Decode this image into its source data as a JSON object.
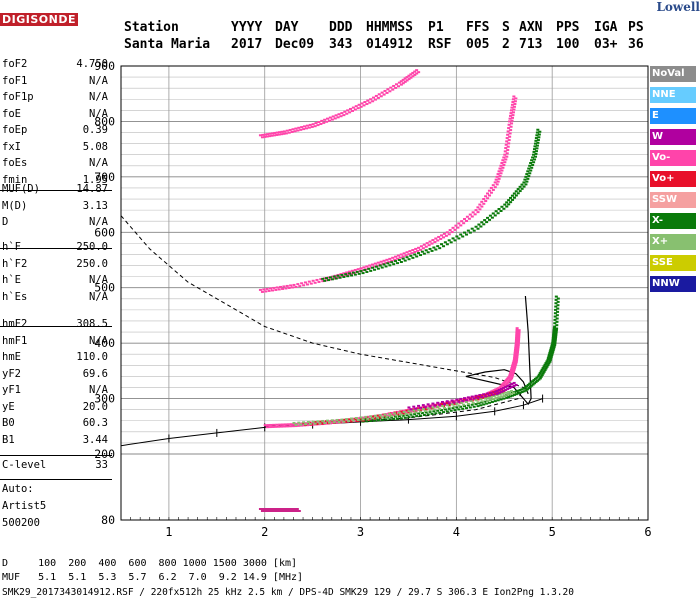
{
  "logo": {
    "line1": "Lowell",
    "line2": "DIGISONDE"
  },
  "header": {
    "labels": [
      "Station",
      "YYYY",
      "DAY",
      "DDD",
      "HHMMSS",
      "P1",
      "FFS",
      "S",
      "AXN",
      "PPS",
      "IGA",
      "PS"
    ],
    "values": [
      "Santa Maria",
      "2017",
      "Dec09",
      "343",
      "014912",
      "RSF",
      "005",
      "2",
      "713",
      "100",
      "03+",
      "36"
    ]
  },
  "params_group1": [
    {
      "k": "foF2",
      "v": "4.750"
    },
    {
      "k": "foF1",
      "v": "N/A"
    },
    {
      "k": "foF1p",
      "v": "N/A"
    },
    {
      "k": "foE",
      "v": "N/A"
    },
    {
      "k": "foEp",
      "v": "0.39"
    },
    {
      "k": "fxI",
      "v": "5.08"
    },
    {
      "k": "foEs",
      "v": "N/A"
    },
    {
      "k": "fmin",
      "v": "1.95"
    }
  ],
  "params_group2": [
    {
      "k": "MUF(D)",
      "v": "14.87"
    },
    {
      "k": "M(D)",
      "v": "3.13"
    },
    {
      "k": "D",
      "v": "N/A"
    }
  ],
  "params_group3": [
    {
      "k": "h`F",
      "v": "250.0"
    },
    {
      "k": "h`F2",
      "v": "250.0"
    },
    {
      "k": "h`E",
      "v": "N/A"
    },
    {
      "k": "h`Es",
      "v": "N/A"
    }
  ],
  "params_group4": [
    {
      "k": "hmF2",
      "v": "308.5"
    },
    {
      "k": "hmF1",
      "v": "N/A"
    },
    {
      "k": "hmE",
      "v": "110.0"
    },
    {
      "k": "yF2",
      "v": "69.6"
    },
    {
      "k": "yF1",
      "v": "N/A"
    },
    {
      "k": "yE",
      "v": "20.0"
    },
    {
      "k": "B0",
      "v": "60.3"
    },
    {
      "k": "B1",
      "v": "3.44"
    }
  ],
  "clevel": {
    "k": "C-level",
    "v": "33"
  },
  "auto": {
    "line1": "Auto:",
    "line2": "Artist5",
    "line3": "500200"
  },
  "legend": [
    {
      "label": "NoVal",
      "color": "#8c8c8c"
    },
    {
      "label": "NNE",
      "color": "#66ccff"
    },
    {
      "label": "E",
      "color": "#1e90ff"
    },
    {
      "label": "W",
      "color": "#b0009f"
    },
    {
      "label": "Vo-",
      "color": "#ff44aa"
    },
    {
      "label": "Vo+",
      "color": "#e8102a"
    },
    {
      "label": "SSW",
      "color": "#f5a0a0"
    },
    {
      "label": "X-",
      "color": "#0a7a0a"
    },
    {
      "label": "X+",
      "color": "#88c070"
    },
    {
      "label": "SSE",
      "color": "#cccc00"
    },
    {
      "label": "NNW",
      "color": "#1a1aa0"
    }
  ],
  "footer": {
    "d_row": "D     100  200  400  600  800 1000 1500 3000 [km]",
    "muf_row": "MUF   5.1  5.1  5.3  5.7  6.2  7.0  9.2 14.9 [MHz]",
    "info_row": "SMK29_2017343014912.RSF / 220fx512h 25 kHz 2.5 km / DPS-4D SMK29 129 / 29.7 S 306.3 E Ion2Png 1.3.20"
  },
  "chart_data": {
    "type": "scatter",
    "x_ticks": [
      "1",
      "2",
      "3",
      "4",
      "5",
      "6"
    ],
    "y_ticks": [
      "80",
      "200",
      "300",
      "400",
      "500",
      "600",
      "700",
      "800",
      "900"
    ],
    "xlim": [
      0.5,
      6
    ],
    "y_axis_note": "virtual height scale: 80 then 200..900 every 100 (km)",
    "grid": true,
    "series": [
      {
        "name": "Vo-",
        "color": "#ff44aa",
        "points": [
          [
            2.0,
            252
          ],
          [
            2.3,
            254
          ],
          [
            2.6,
            258
          ],
          [
            2.9,
            263
          ],
          [
            3.2,
            270
          ],
          [
            3.5,
            280
          ],
          [
            3.8,
            290
          ],
          [
            4.1,
            300
          ],
          [
            4.3,
            308
          ],
          [
            4.45,
            320
          ],
          [
            4.55,
            340
          ],
          [
            4.6,
            370
          ],
          [
            4.62,
            400
          ],
          [
            4.63,
            430
          ]
        ]
      },
      {
        "name": "X-",
        "color": "#0a7a0a",
        "points": [
          [
            3.0,
            262
          ],
          [
            3.4,
            268
          ],
          [
            3.8,
            278
          ],
          [
            4.2,
            290
          ],
          [
            4.5,
            305
          ],
          [
            4.7,
            318
          ],
          [
            4.85,
            340
          ],
          [
            4.95,
            370
          ],
          [
            5.0,
            400
          ],
          [
            5.02,
            430
          ],
          [
            5.04,
            490
          ]
        ]
      },
      {
        "name": "Vo+",
        "color": "#e8102a",
        "points": [
          [
            2.4,
            256
          ],
          [
            3.0,
            264
          ],
          [
            3.6,
            282
          ],
          [
            4.2,
            302
          ],
          [
            4.5,
            318
          ]
        ]
      },
      {
        "name": "X+",
        "color": "#88c070",
        "points": [
          [
            2.3,
            256
          ],
          [
            2.8,
            262
          ],
          [
            3.3,
            272
          ],
          [
            3.8,
            285
          ],
          [
            4.3,
            300
          ],
          [
            4.6,
            315
          ]
        ]
      },
      {
        "name": "W",
        "color": "#b0009f",
        "points": [
          [
            3.5,
            284
          ],
          [
            4.0,
            298
          ],
          [
            4.4,
            312
          ],
          [
            4.62,
            330
          ]
        ]
      },
      {
        "name": "Vo- (2nd hop)",
        "color": "#ff44aa",
        "points": [
          [
            1.95,
            496
          ],
          [
            2.3,
            505
          ],
          [
            2.7,
            520
          ],
          [
            3.0,
            535
          ],
          [
            3.3,
            552
          ],
          [
            3.6,
            572
          ],
          [
            3.9,
            600
          ],
          [
            4.2,
            640
          ],
          [
            4.4,
            690
          ],
          [
            4.5,
            740
          ],
          [
            4.55,
            800
          ],
          [
            4.6,
            850
          ]
        ]
      },
      {
        "name": "X- (2nd hop)",
        "color": "#0a7a0a",
        "points": [
          [
            2.6,
            516
          ],
          [
            3.0,
            530
          ],
          [
            3.4,
            550
          ],
          [
            3.8,
            575
          ],
          [
            4.2,
            610
          ],
          [
            4.5,
            650
          ],
          [
            4.7,
            690
          ],
          [
            4.8,
            740
          ],
          [
            4.85,
            790
          ]
        ]
      },
      {
        "name": "multi-hop",
        "color": "#ff44aa",
        "points": [
          [
            1.95,
            775
          ],
          [
            2.2,
            782
          ],
          [
            2.5,
            795
          ],
          [
            2.8,
            815
          ],
          [
            3.1,
            840
          ],
          [
            3.4,
            870
          ],
          [
            3.6,
            895
          ]
        ]
      },
      {
        "name": "low echoes",
        "color": "#cc2288",
        "points": [
          [
            1.95,
            100
          ],
          [
            2.1,
            100
          ],
          [
            2.2,
            100
          ],
          [
            2.35,
            100
          ]
        ]
      }
    ],
    "profile_solid": [
      [
        4.75,
        308.5
      ],
      [
        4.7,
        330
      ],
      [
        4.62,
        345
      ],
      [
        4.5,
        352
      ],
      [
        4.3,
        348
      ],
      [
        4.1,
        340
      ],
      [
        4.6,
        320
      ],
      [
        4.75,
        290
      ],
      [
        4.78,
        300
      ],
      [
        4.75,
        420
      ],
      [
        4.72,
        485
      ]
    ],
    "ticked_curve": [
      [
        0.5,
        215
      ],
      [
        1.0,
        228
      ],
      [
        1.5,
        238
      ],
      [
        2.0,
        248
      ],
      [
        2.5,
        253
      ],
      [
        3.0,
        258
      ],
      [
        3.5,
        262
      ],
      [
        4.0,
        268
      ],
      [
        4.4,
        277
      ],
      [
        4.7,
        288
      ],
      [
        4.9,
        300
      ]
    ],
    "dashed_curve": [
      [
        0.5,
        630
      ],
      [
        0.8,
        570
      ],
      [
        1.2,
        510
      ],
      [
        1.6,
        470
      ],
      [
        2.0,
        430
      ],
      [
        2.5,
        400
      ],
      [
        3.0,
        380
      ],
      [
        3.5,
        365
      ],
      [
        4.0,
        350
      ],
      [
        4.4,
        338
      ],
      [
        4.7,
        320
      ],
      [
        4.65,
        300
      ],
      [
        4.2,
        280
      ],
      [
        3.5,
        265
      ],
      [
        2.8,
        258
      ],
      [
        2.0,
        250
      ]
    ]
  }
}
